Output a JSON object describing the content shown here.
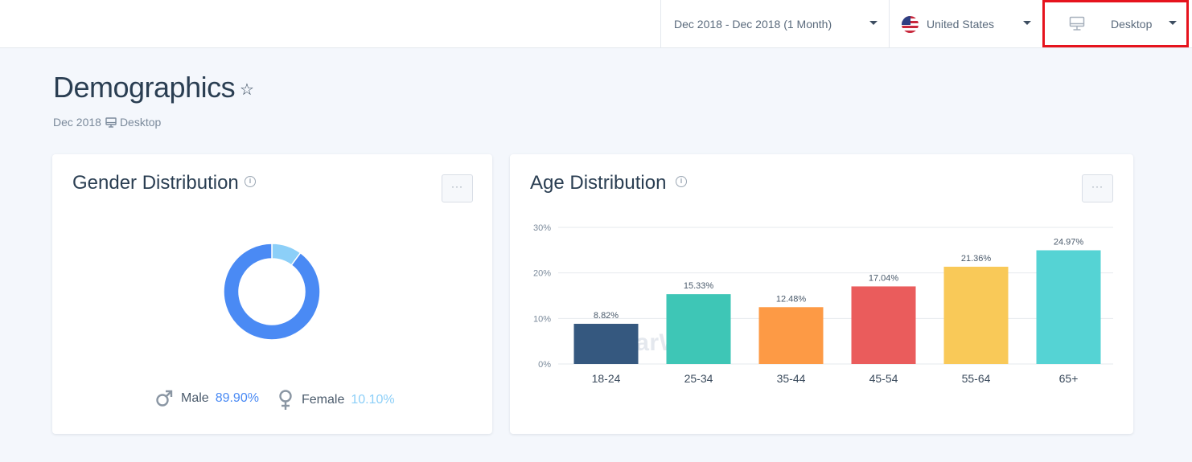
{
  "topbar": {
    "date_range": "Dec 2018 - Dec 2018 (1 Month)",
    "country": "United States",
    "device": "Desktop"
  },
  "header": {
    "title": "Demographics",
    "subtitle_date": "Dec 2018",
    "subtitle_device": "Desktop"
  },
  "gender": {
    "title": "Gender Distribution",
    "menu": "···",
    "male_label": "Male",
    "male_value": "89.90%",
    "female_label": "Female",
    "female_value": "10.10%",
    "male_color": "#4a8af4",
    "female_color": "#8ccff8"
  },
  "age": {
    "title": "Age Distribution",
    "menu": "···",
    "watermark": "SimilarWeb"
  },
  "chart_data": [
    {
      "type": "pie",
      "title": "Gender Distribution",
      "categories": [
        "Male",
        "Female"
      ],
      "values": [
        89.9,
        10.1
      ],
      "colors": [
        "#4a8af4",
        "#8ccff8"
      ]
    },
    {
      "type": "bar",
      "title": "Age Distribution",
      "categories": [
        "18-24",
        "25-34",
        "35-44",
        "45-54",
        "55-64",
        "65+"
      ],
      "values": [
        8.82,
        15.33,
        12.48,
        17.04,
        21.36,
        24.97
      ],
      "value_labels": [
        "8.82%",
        "15.33%",
        "12.48%",
        "17.04%",
        "21.36%",
        "24.97%"
      ],
      "colors": [
        "#35587f",
        "#3ec6b6",
        "#fd9a45",
        "#ea5c5c",
        "#f9c958",
        "#55d3d4"
      ],
      "ylim": [
        0,
        30
      ],
      "yticks": [
        0,
        10,
        20,
        30
      ],
      "ytick_labels": [
        "0%",
        "10%",
        "20%",
        "30%"
      ],
      "grid": true
    }
  ]
}
